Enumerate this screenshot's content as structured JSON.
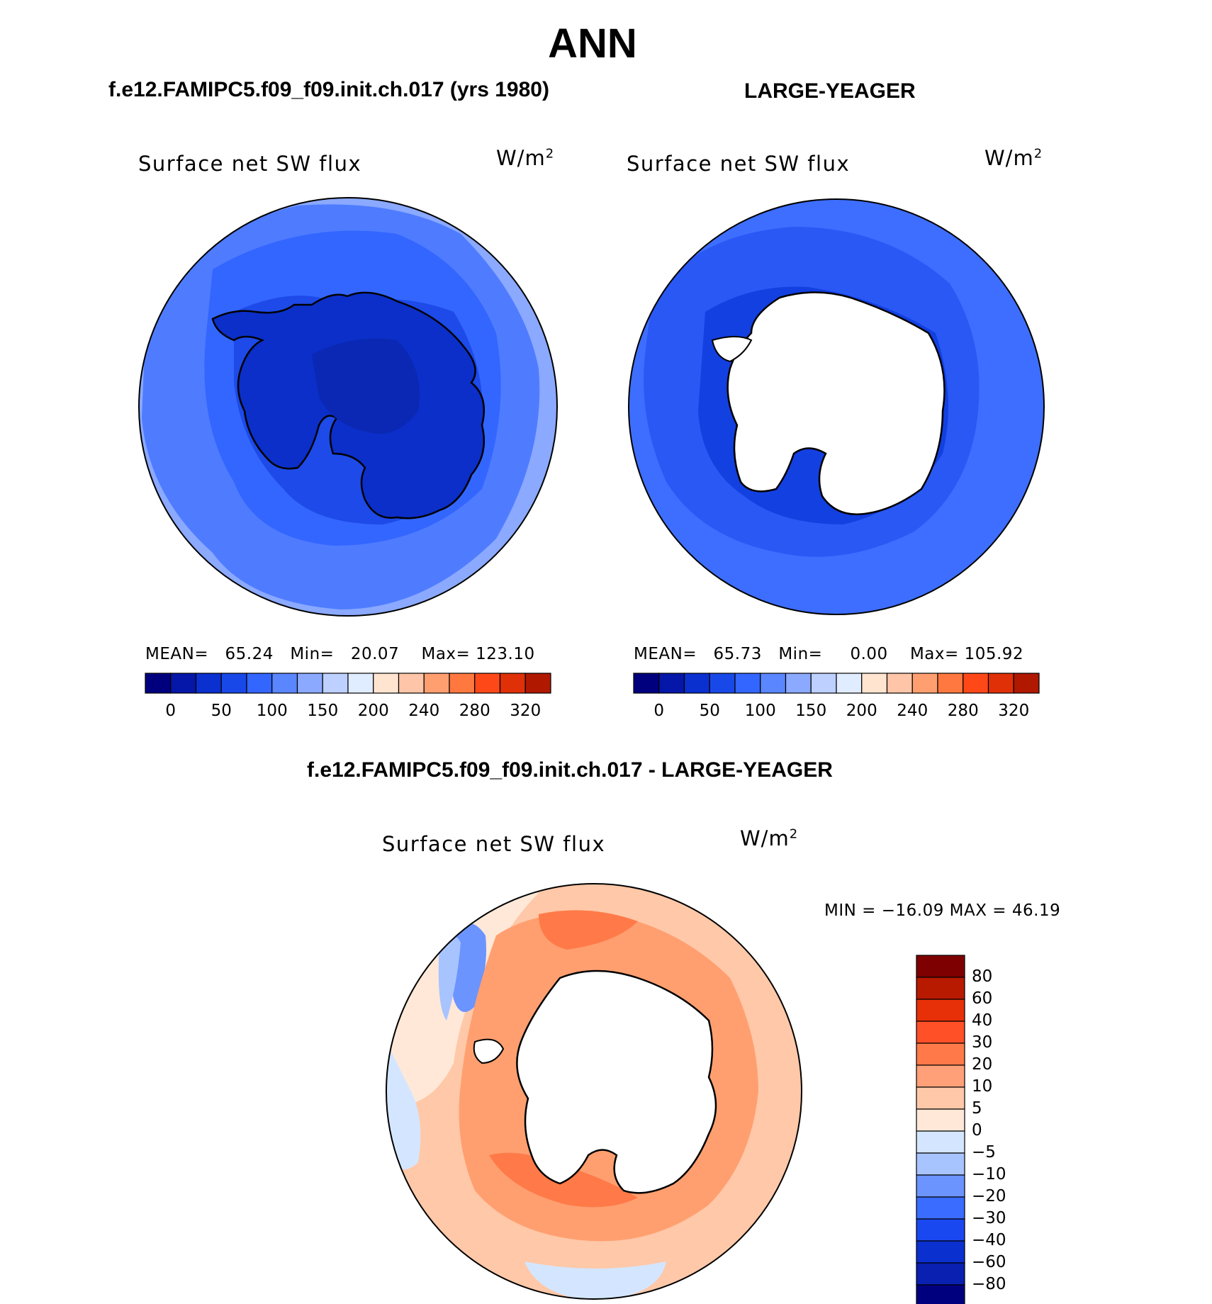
{
  "title": "ANN",
  "colors": {
    "seq_scale": [
      "#00007f",
      "#0517a8",
      "#0b30d0",
      "#1849e8",
      "#3366ff",
      "#5a86ff",
      "#8ba9ff",
      "#bdd0ff",
      "#e0ecff",
      "#ffe4d0",
      "#ffc5a8",
      "#ff9f70",
      "#ff7840",
      "#ff4818",
      "#e03008",
      "#b01800",
      "#7f0000"
    ],
    "diff_scale": [
      "#00007f",
      "#0a20b0",
      "#0b30d0",
      "#1a48f0",
      "#3a6cff",
      "#6b94ff",
      "#a8c4ff",
      "#d4e6ff",
      "#ffe8d8",
      "#ffc8a8",
      "#ffa078",
      "#ff7a48",
      "#ff5028",
      "#e83008",
      "#b81a00",
      "#7f0000"
    ],
    "ice": "#ffffff"
  },
  "panels": [
    {
      "header": "f.e12.FAMIPC5.f09_f09.init.ch.017 (yrs 1980)",
      "variable": "Surface net SW flux",
      "units": "W/m",
      "units_sup": "2",
      "stats": {
        "mean_label": "MEAN=",
        "mean": "65.24",
        "min_label": "Min=",
        "min": "20.07",
        "max_label": "Max=",
        "max": "123.10"
      },
      "colorbar_ticks": [
        "0",
        "50",
        "100",
        "150",
        "200",
        "240",
        "280",
        "320"
      ]
    },
    {
      "header": "LARGE-YEAGER",
      "variable": "Surface net SW flux",
      "units": "W/m",
      "units_sup": "2",
      "stats": {
        "mean_label": "MEAN=",
        "mean": "65.73",
        "min_label": "Min=",
        "min": "0.00",
        "max_label": "Max=",
        "max": "105.92"
      },
      "colorbar_ticks": [
        "0",
        "50",
        "100",
        "150",
        "200",
        "240",
        "280",
        "320"
      ]
    }
  ],
  "difference": {
    "header": "f.e12.FAMIPC5.f09_f09.init.ch.017 - LARGE-YEAGER",
    "variable": "Surface net SW flux",
    "units": "W/m",
    "units_sup": "2",
    "minmax": "MIN = −16.09 MAX =   46.19",
    "colorbar_ticks": [
      "80",
      "60",
      "40",
      "30",
      "20",
      "10",
      "5",
      "0",
      "−5",
      "−10",
      "−20",
      "−30",
      "−40",
      "−60",
      "−80"
    ]
  },
  "chart_data": [
    {
      "type": "heatmap",
      "title": "f.e12.FAMIPC5.f09_f09.init.ch.017 (yrs 1980)",
      "subtitle": "Surface net SW flux",
      "units": "W/m2",
      "projection": "south polar stereographic",
      "mean": 65.24,
      "min": 20.07,
      "max": 123.1,
      "contour_levels": [
        0,
        50,
        100,
        150,
        200,
        240,
        280,
        320
      ]
    },
    {
      "type": "heatmap",
      "title": "LARGE-YEAGER",
      "subtitle": "Surface net SW flux",
      "units": "W/m2",
      "projection": "south polar stereographic",
      "mean": 65.73,
      "min": 0.0,
      "max": 105.92,
      "contour_levels": [
        0,
        50,
        100,
        150,
        200,
        240,
        280,
        320
      ]
    },
    {
      "type": "heatmap",
      "title": "f.e12.FAMIPC5.f09_f09.init.ch.017 - LARGE-YEAGER",
      "subtitle": "Surface net SW flux",
      "units": "W/m2",
      "projection": "south polar stereographic",
      "min": -16.09,
      "max": 46.19,
      "contour_levels": [
        -80,
        -60,
        -40,
        -30,
        -20,
        -10,
        -5,
        0,
        5,
        10,
        20,
        30,
        40,
        60,
        80
      ]
    }
  ]
}
